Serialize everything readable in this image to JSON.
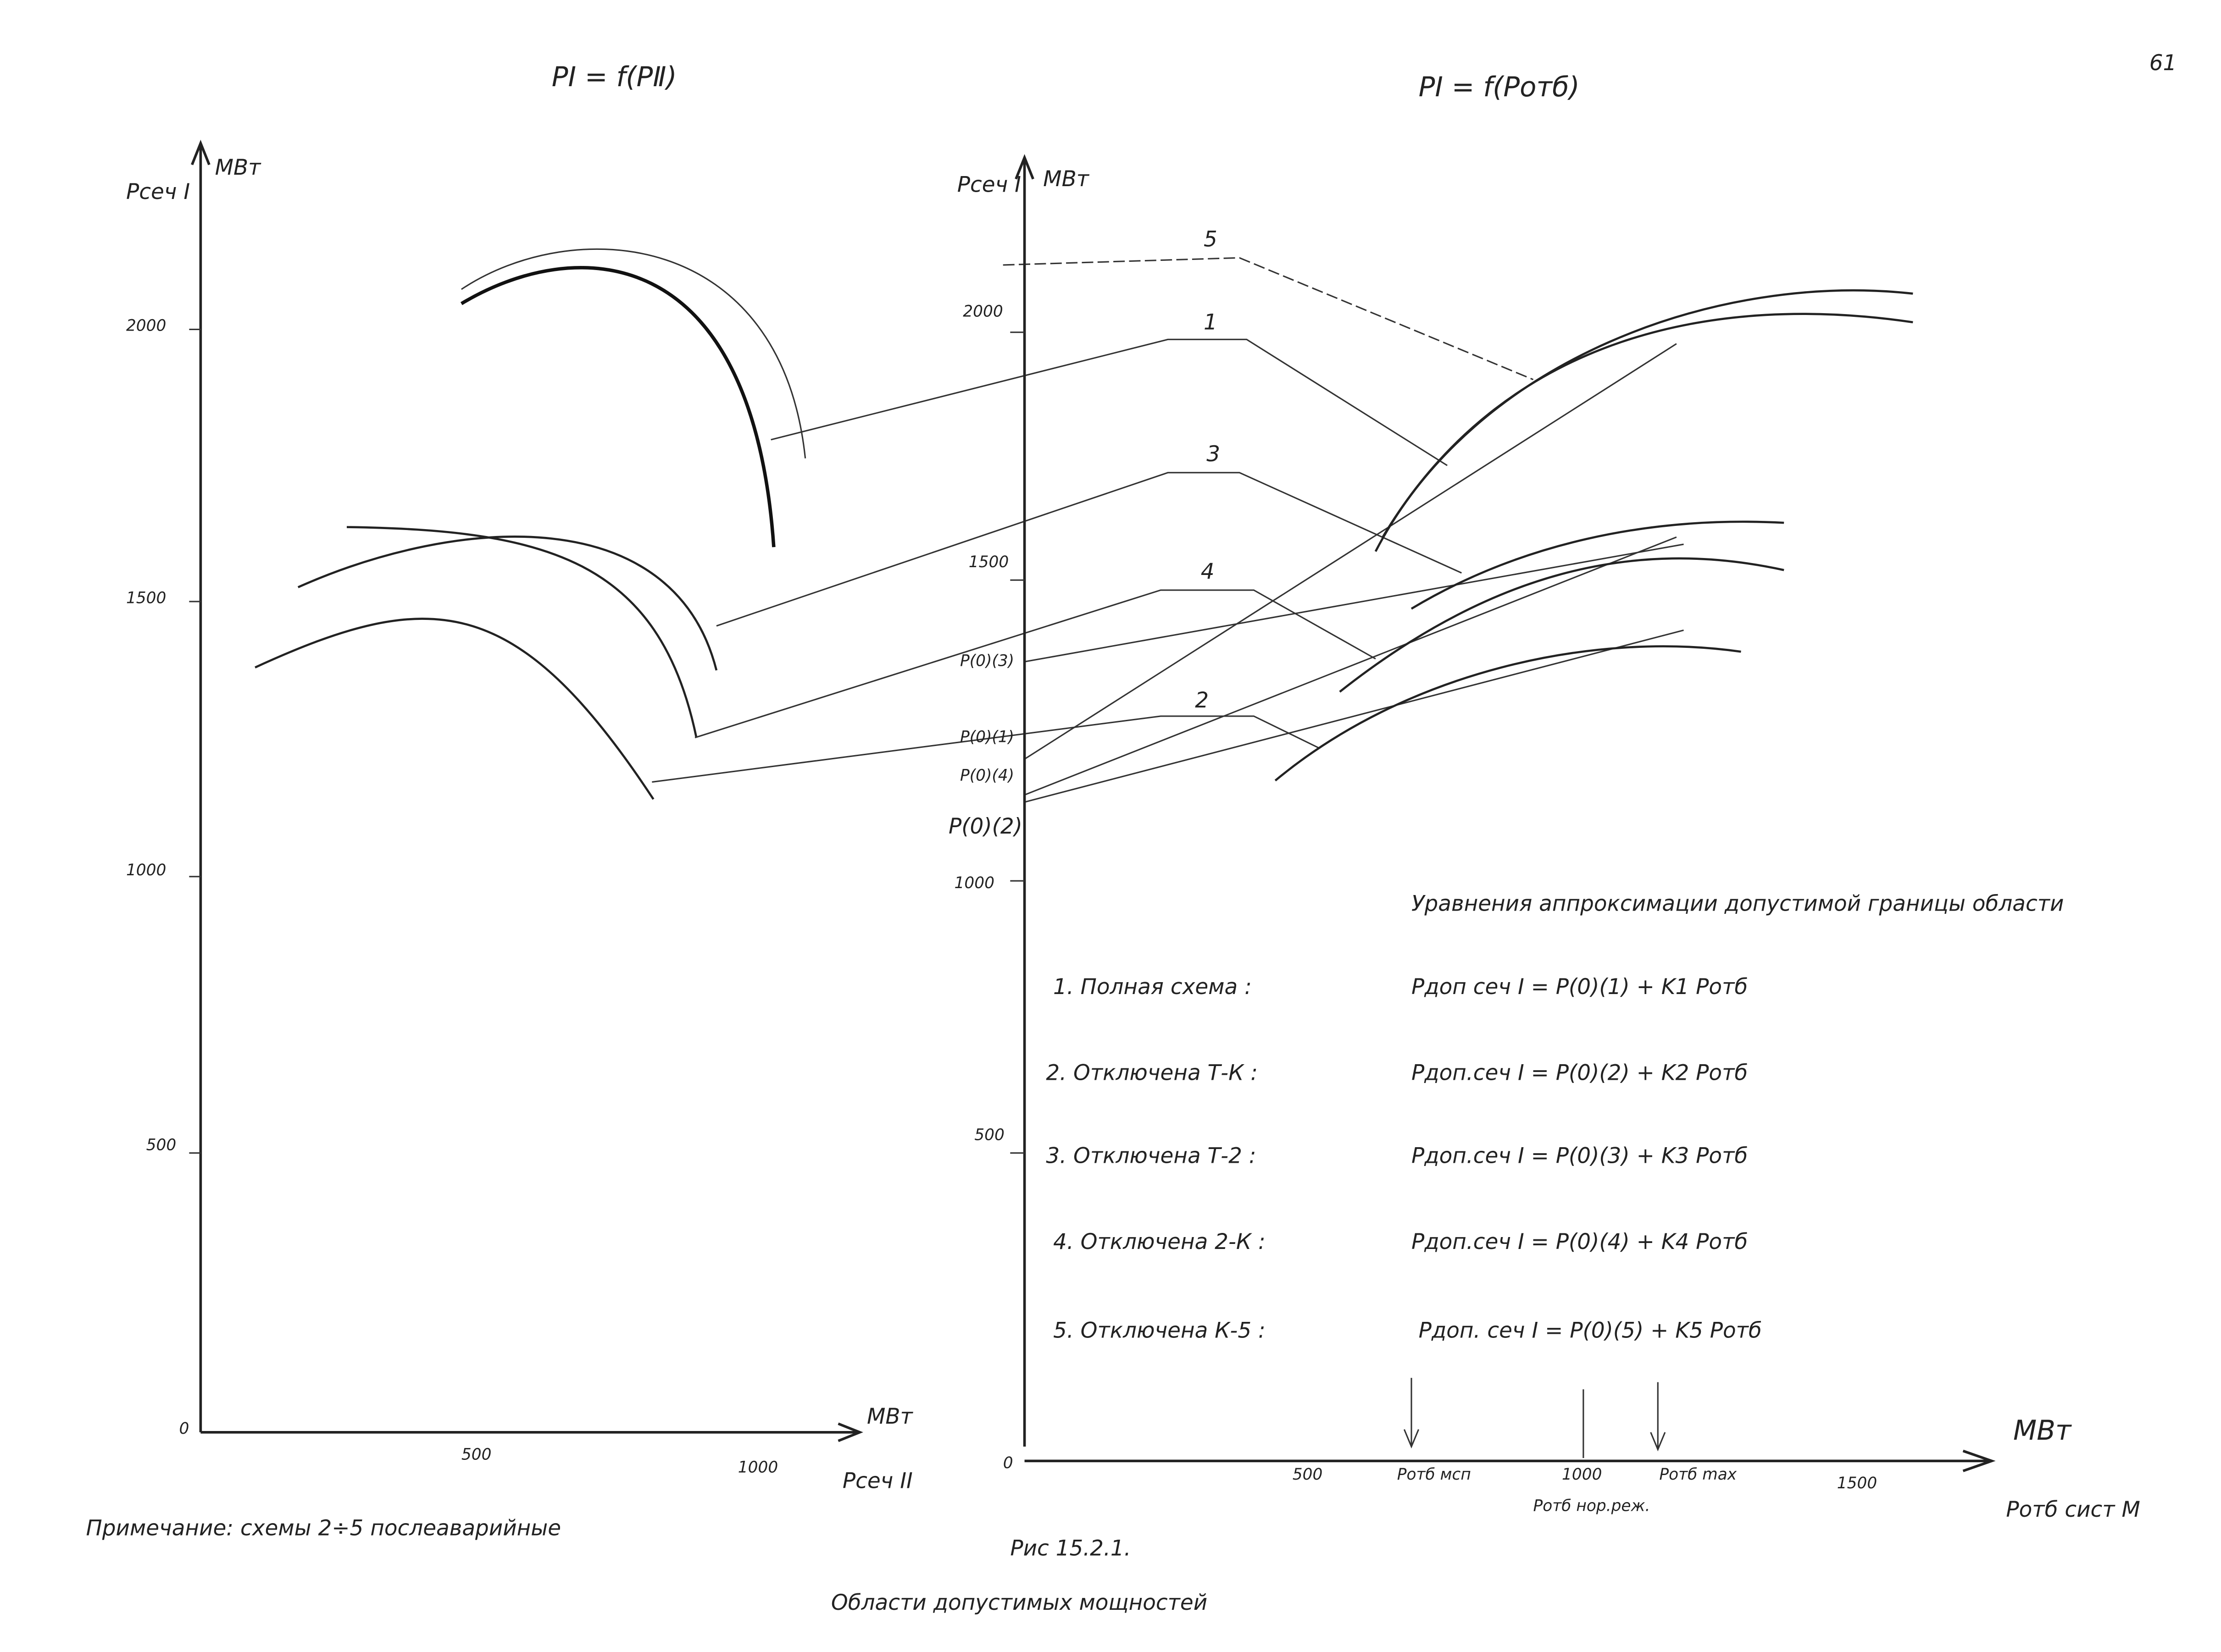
{
  "page_number": "61",
  "left_chart": {
    "title": "PⅠ = f(PⅡ)",
    "y_label": "Pсеч I",
    "y_unit": "МВт",
    "y_ticks": [
      "2000",
      "1500",
      "1000",
      "500",
      "0"
    ],
    "x_ticks": [
      "500",
      "1000"
    ],
    "x_unit": "МВт",
    "x_label": "Pсеч II"
  },
  "right_chart": {
    "title": "PⅠ = f(Pотб)",
    "y_label": "Pсеч I",
    "y_unit": "МВт",
    "y_ticks": [
      "2000",
      "1500",
      "1000",
      "500"
    ],
    "origin": "0",
    "intercepts": [
      "P(0)(3)",
      "P(0)(1)",
      "P(0)(4)",
      "P(0)(2)"
    ],
    "curve_labels": [
      "5",
      "1",
      "3",
      "4",
      "2"
    ],
    "x_ticks": [
      "500",
      "1000",
      "1500"
    ],
    "x_unit": "МВт",
    "x_label": "Pотб сист М",
    "markers": [
      "Pотб мсп",
      "Pотб нор.реж.",
      "Pотб max"
    ]
  },
  "equations": {
    "heading": "Уравнения аппроксимации допустимой границы области",
    "rows": [
      {
        "scheme": "1. Полная схема :",
        "formula": "Pдоп сеч I = P(0)(1) + K1 Pотб"
      },
      {
        "scheme": "2. Отключена Т-К :",
        "formula": "Pдоп.сеч I = P(0)(2) + K2 Pотб"
      },
      {
        "scheme": "3. Отключена Т-2 :",
        "formula": "Pдоп.сеч I = P(0)(3) + K3 Pотб"
      },
      {
        "scheme": "4. Отключена 2-К :",
        "formula": "Pдоп.сеч I = P(0)(4) + K4 Pотб"
      },
      {
        "scheme": "5. Отключена К-5 :",
        "formula": "Pдоп. сеч I = P(0)(5) + K5 Pотб"
      }
    ]
  },
  "note": "Примечание: схемы 2÷5 послеаварийные",
  "caption": {
    "number": "Рис 15.2.1.",
    "title": "Области допустимых мощностей"
  }
}
